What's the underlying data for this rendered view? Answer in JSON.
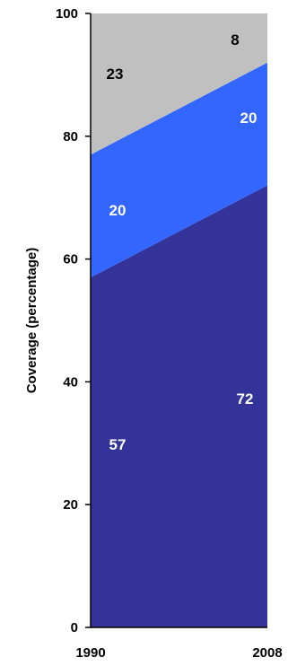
{
  "chart_data": {
    "type": "area",
    "stacked": true,
    "x": [
      "1990",
      "2008"
    ],
    "ylabel": "Coverage (percentage)",
    "xlabel": "",
    "title": "",
    "ylim": [
      0,
      100
    ],
    "yticks": [
      0,
      20,
      40,
      60,
      80,
      100
    ],
    "grid": false,
    "legend": "none",
    "series": [
      {
        "values": [
          57,
          72
        ],
        "labels": [
          "57",
          "72"
        ],
        "color": "#333399",
        "label_color": "#ffffff"
      },
      {
        "values": [
          20,
          20
        ],
        "labels": [
          "20",
          "20"
        ],
        "color": "#3366ff",
        "label_color": "#ffffff"
      },
      {
        "values": [
          23,
          8
        ],
        "labels": [
          "23",
          "8"
        ],
        "color": "#c0c0c0",
        "label_color": "#000000"
      }
    ]
  }
}
